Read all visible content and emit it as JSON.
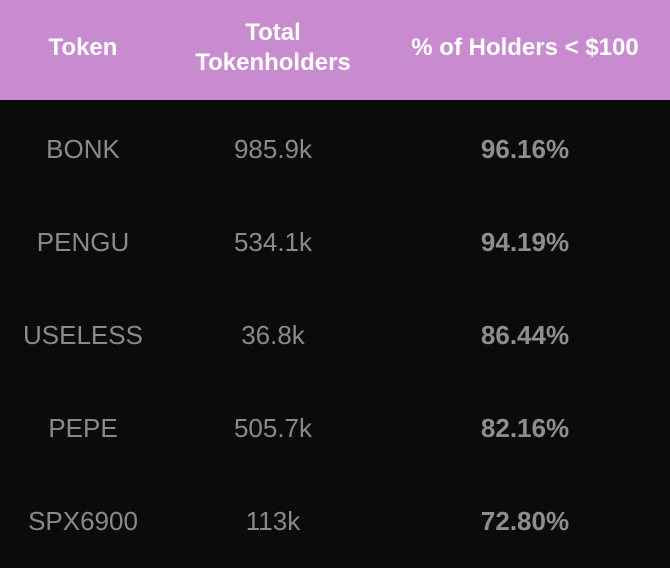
{
  "header": {
    "token": "Token",
    "total_line1": "Total",
    "total_line2": "Tokenholders",
    "pct": "% of Holders < $100"
  },
  "rows": [
    {
      "token": "BONK",
      "total": "985.9k",
      "pct": "96.16%"
    },
    {
      "token": "PENGU",
      "total": "534.1k",
      "pct": "94.19%"
    },
    {
      "token": "USELESS",
      "total": "36.8k",
      "pct": "86.44%"
    },
    {
      "token": "PEPE",
      "total": "505.7k",
      "pct": "82.16%"
    },
    {
      "token": "SPX6900",
      "total": "113k",
      "pct": "72.80%"
    }
  ],
  "colors": {
    "header_bg": "#c98bcf",
    "body_bg": "#0b0b0b",
    "header_text": "#ffffff",
    "cell_text": "#8a8a8a"
  }
}
